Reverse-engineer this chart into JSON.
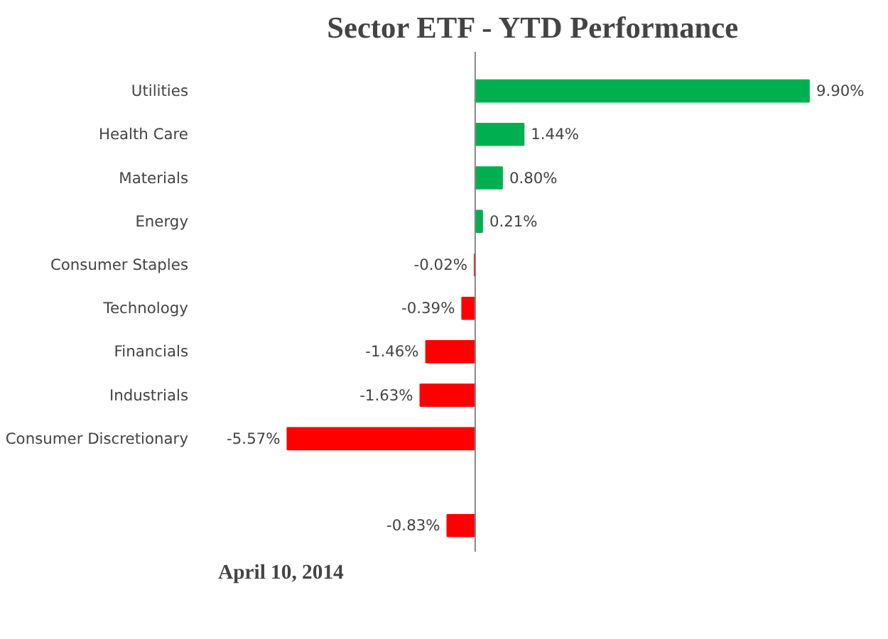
{
  "chart_data": {
    "type": "bar",
    "orientation": "horizontal",
    "title": "Sector ETF - YTD  Performance",
    "categories": [
      "Utilities",
      "Health Care",
      "Materials",
      "Energy",
      "Consumer Staples",
      "Technology",
      "Financials",
      "Industrials",
      "Consumer Discretionary",
      null,
      null
    ],
    "values": [
      9.9,
      1.44,
      0.8,
      0.21,
      -0.02,
      -0.39,
      -1.46,
      -1.63,
      -5.57,
      null,
      -0.83
    ],
    "value_labels": [
      "9.90%",
      "1.44%",
      "0.80%",
      "0.21%",
      "-0.02%",
      "-0.39%",
      "-1.46%",
      "-1.63%",
      "-5.57%",
      null,
      "-0.83%"
    ],
    "colors": [
      "#00b050",
      "#00b050",
      "#00b050",
      "#00b050",
      "#ff0000",
      "#ff0000",
      "#ff0000",
      "#ff0000",
      "#ff0000",
      null,
      "#ff0000"
    ],
    "annotations": [
      "April 10, 2014"
    ],
    "grid": false
  }
}
